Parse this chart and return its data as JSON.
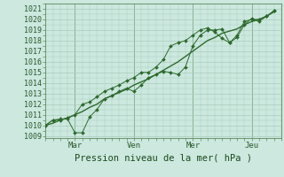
{
  "title": "Pression niveau de la mer( hPa )",
  "ylabel_ticks": [
    1009,
    1010,
    1011,
    1012,
    1013,
    1014,
    1015,
    1016,
    1017,
    1018,
    1019,
    1020,
    1021
  ],
  "ylim": [
    1008.8,
    1021.3
  ],
  "xlim": [
    0,
    32
  ],
  "xtick_positions": [
    4,
    12,
    20,
    28
  ],
  "xtick_labels": [
    "Mar",
    "Ven",
    "Mer",
    "Jeu"
  ],
  "vlines": [
    4,
    12,
    20,
    28
  ],
  "background_color": "#cce8df",
  "grid_color": "#aaccbb",
  "line_color": "#2d6a2d",
  "line1_x": [
    0,
    1,
    2,
    3,
    4,
    5,
    6,
    7,
    8,
    9,
    10,
    11,
    12,
    13,
    14,
    15,
    16,
    17,
    18,
    19,
    20,
    21,
    22,
    23,
    24,
    25,
    26,
    27,
    28,
    29,
    30,
    31
  ],
  "line1_y": [
    1010.0,
    1010.5,
    1010.6,
    1010.6,
    1009.3,
    1009.3,
    1010.8,
    1011.5,
    1012.5,
    1012.8,
    1013.2,
    1013.5,
    1013.2,
    1013.8,
    1014.5,
    1014.8,
    1015.1,
    1015.0,
    1014.8,
    1015.5,
    1017.5,
    1018.5,
    1019.0,
    1019.0,
    1019.1,
    1017.8,
    1018.3,
    1019.5,
    1020.1,
    1019.8,
    1020.3,
    1020.8
  ],
  "line2_x": [
    0,
    1,
    2,
    3,
    4,
    5,
    6,
    7,
    8,
    9,
    10,
    11,
    12,
    13,
    14,
    15,
    16,
    17,
    18,
    19,
    20,
    21,
    22,
    23,
    24,
    25,
    26,
    27,
    28,
    29,
    30,
    31
  ],
  "line2_y": [
    1010.0,
    1010.5,
    1010.5,
    1010.7,
    1011.0,
    1012.0,
    1012.2,
    1012.7,
    1013.2,
    1013.5,
    1013.8,
    1014.2,
    1014.5,
    1015.0,
    1015.0,
    1015.5,
    1016.2,
    1017.5,
    1017.8,
    1018.0,
    1018.5,
    1019.0,
    1019.2,
    1018.8,
    1018.2,
    1017.8,
    1018.5,
    1019.8,
    1020.0,
    1020.0,
    1020.3,
    1020.8
  ],
  "line3_x": [
    0,
    1,
    2,
    3,
    4,
    5,
    6,
    7,
    8,
    9,
    10,
    11,
    12,
    13,
    14,
    15,
    16,
    17,
    18,
    19,
    20,
    21,
    22,
    23,
    24,
    25,
    26,
    27,
    28,
    29,
    30,
    31
  ],
  "line3_y": [
    1010.0,
    1010.2,
    1010.5,
    1010.7,
    1011.0,
    1011.3,
    1011.7,
    1012.0,
    1012.5,
    1012.8,
    1013.1,
    1013.4,
    1013.8,
    1014.1,
    1014.4,
    1014.8,
    1015.2,
    1015.6,
    1016.0,
    1016.5,
    1017.0,
    1017.5,
    1018.0,
    1018.3,
    1018.7,
    1018.9,
    1019.1,
    1019.5,
    1019.8,
    1020.0,
    1020.3,
    1020.7
  ]
}
